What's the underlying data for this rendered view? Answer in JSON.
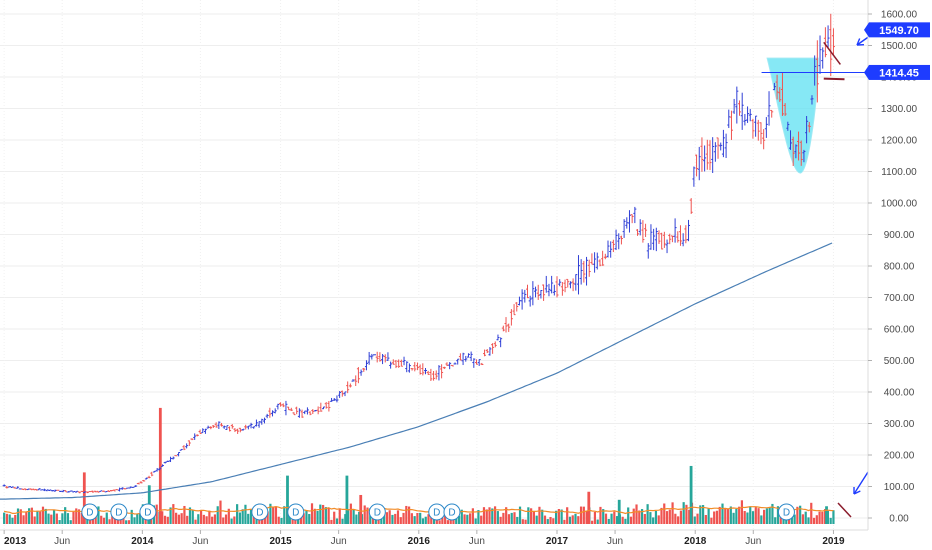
{
  "chart_data": {
    "type": "candlestick-bar",
    "y_axis": {
      "ticks": [
        "1600.00",
        "1500.00",
        "1400.00",
        "1300.00",
        "1200.00",
        "1100.00",
        "1000.00",
        "900.00",
        "800.00",
        "700.00",
        "600.00",
        "500.00",
        "400.00",
        "300.00",
        "200.00",
        "100.00",
        "0.00"
      ],
      "tick_values": [
        1600,
        1500,
        1400,
        1300,
        1200,
        1100,
        1000,
        900,
        800,
        700,
        600,
        500,
        400,
        300,
        200,
        100,
        0
      ],
      "range": [
        -20,
        1650
      ]
    },
    "x_axis": {
      "labels": [
        "2013",
        "Jun",
        "2014",
        "Jun",
        "2015",
        "Jun",
        "2016",
        "Jun",
        "2017",
        "Jun",
        "2018",
        "Jun",
        "2019"
      ],
      "label_dates": [
        2013.0,
        2013.42,
        2014.0,
        2014.42,
        2015.0,
        2015.42,
        2016.0,
        2016.42,
        2017.0,
        2017.42,
        2018.0,
        2018.42,
        2019.0
      ],
      "range": [
        2012.97,
        2019.25
      ]
    },
    "price_badges": [
      {
        "label": "1549.70",
        "value": 1549.7,
        "color": "#1e3cff"
      },
      {
        "label": "1414.45",
        "value": 1414.45,
        "color": "#1e3cff"
      }
    ],
    "price_points": [
      {
        "t": 2013.0,
        "v": 100
      },
      {
        "t": 2013.15,
        "v": 92
      },
      {
        "t": 2013.35,
        "v": 88
      },
      {
        "t": 2013.55,
        "v": 82
      },
      {
        "t": 2013.75,
        "v": 85
      },
      {
        "t": 2013.95,
        "v": 100
      },
      {
        "t": 2014.1,
        "v": 150
      },
      {
        "t": 2014.25,
        "v": 200
      },
      {
        "t": 2014.4,
        "v": 270
      },
      {
        "t": 2014.55,
        "v": 295
      },
      {
        "t": 2014.7,
        "v": 280
      },
      {
        "t": 2014.85,
        "v": 300
      },
      {
        "t": 2015.0,
        "v": 360
      },
      {
        "t": 2015.15,
        "v": 330
      },
      {
        "t": 2015.35,
        "v": 360
      },
      {
        "t": 2015.5,
        "v": 420
      },
      {
        "t": 2015.65,
        "v": 510
      },
      {
        "t": 2015.8,
        "v": 500
      },
      {
        "t": 2015.95,
        "v": 480
      },
      {
        "t": 2016.1,
        "v": 450
      },
      {
        "t": 2016.3,
        "v": 510
      },
      {
        "t": 2016.45,
        "v": 500
      },
      {
        "t": 2016.6,
        "v": 580
      },
      {
        "t": 2016.75,
        "v": 700
      },
      {
        "t": 2016.9,
        "v": 720
      },
      {
        "t": 2017.05,
        "v": 740
      },
      {
        "t": 2017.25,
        "v": 800
      },
      {
        "t": 2017.4,
        "v": 860
      },
      {
        "t": 2017.55,
        "v": 960
      },
      {
        "t": 2017.65,
        "v": 880
      },
      {
        "t": 2017.8,
        "v": 880
      },
      {
        "t": 2017.95,
        "v": 900
      },
      {
        "t": 2018.0,
        "v": 1140
      },
      {
        "t": 2018.1,
        "v": 1150
      },
      {
        "t": 2018.2,
        "v": 1180
      },
      {
        "t": 2018.3,
        "v": 1320
      },
      {
        "t": 2018.4,
        "v": 1260
      },
      {
        "t": 2018.5,
        "v": 1220
      },
      {
        "t": 2018.6,
        "v": 1390
      },
      {
        "t": 2018.7,
        "v": 1180
      },
      {
        "t": 2018.78,
        "v": 1150
      },
      {
        "t": 2018.86,
        "v": 1380
      },
      {
        "t": 2018.93,
        "v": 1480
      },
      {
        "t": 2019.0,
        "v": 1520
      }
    ],
    "moving_average_points": [
      {
        "t": 2013.0,
        "v": 60
      },
      {
        "t": 2013.5,
        "v": 65
      },
      {
        "t": 2014.0,
        "v": 80
      },
      {
        "t": 2014.5,
        "v": 115
      },
      {
        "t": 2015.0,
        "v": 170
      },
      {
        "t": 2015.5,
        "v": 225
      },
      {
        "t": 2016.0,
        "v": 290
      },
      {
        "t": 2016.5,
        "v": 370
      },
      {
        "t": 2017.0,
        "v": 460
      },
      {
        "t": 2017.5,
        "v": 570
      },
      {
        "t": 2018.0,
        "v": 680
      },
      {
        "t": 2018.5,
        "v": 780
      },
      {
        "t": 2019.0,
        "v": 875
      }
    ],
    "volume_max": 400,
    "volume_spikes": [
      {
        "t": 2013.58,
        "v": 160,
        "c": "#ef5350"
      },
      {
        "t": 2014.13,
        "v": 360,
        "c": "#ef5350"
      },
      {
        "t": 2014.05,
        "v": 120,
        "c": "#26a69a"
      },
      {
        "t": 2015.05,
        "v": 150,
        "c": "#26a69a"
      },
      {
        "t": 2015.48,
        "v": 150,
        "c": "#26a69a"
      },
      {
        "t": 2015.58,
        "v": 90,
        "c": "#ef5350"
      },
      {
        "t": 2017.23,
        "v": 100,
        "c": "#ef5350"
      },
      {
        "t": 2017.97,
        "v": 180,
        "c": "#26a69a"
      },
      {
        "t": 2017.45,
        "v": 75,
        "c": "#26a69a"
      },
      {
        "t": 2018.95,
        "v": 55,
        "c": "#26a69a"
      }
    ],
    "dividend_markers": [
      {
        "t": 2013.62,
        "label": "D"
      },
      {
        "t": 2013.83,
        "label": "D"
      },
      {
        "t": 2014.04,
        "label": "D"
      },
      {
        "t": 2014.85,
        "label": "D"
      },
      {
        "t": 2015.11,
        "label": "D"
      },
      {
        "t": 2015.7,
        "label": "D"
      },
      {
        "t": 2016.13,
        "label": "D"
      },
      {
        "t": 2016.24,
        "label": "D"
      },
      {
        "t": 2018.66,
        "label": "D"
      }
    ],
    "colors": {
      "up_bar": "#2f3fd6",
      "down_bar": "#ef5350",
      "volume_up": "#26a69a",
      "volume_down": "#ef5350",
      "moving_average": "#4a7fb5",
      "volume_average": "#f28c28",
      "cup_fill": "#5ee0f2",
      "annotation_arrow": "#1e3cff",
      "annotation_lines": "#8b1c2c",
      "resistance_line": "#1e3cff",
      "badge_bg": "#1e3cff"
    }
  }
}
